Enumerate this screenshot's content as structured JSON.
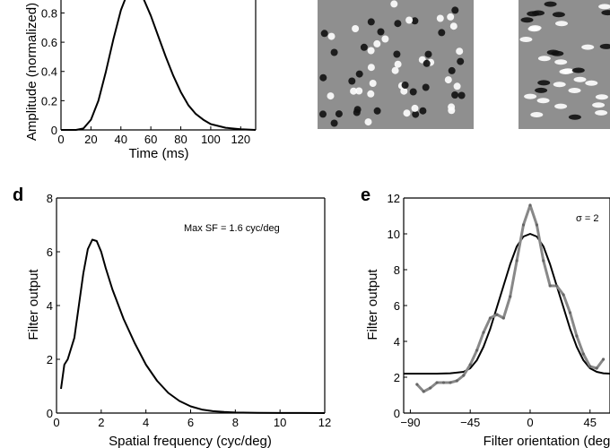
{
  "chart_data": [
    {
      "type": "line",
      "panel": "",
      "xlabel": "Time (ms)",
      "ylabel": "Amplitude (normalized)",
      "xlim": [
        0,
        130
      ],
      "ylim": [
        0,
        0.95
      ],
      "xticks": [
        0,
        20,
        40,
        60,
        80,
        100,
        120
      ],
      "yticks": [
        0,
        0.2,
        0.4,
        0.6,
        0.8
      ],
      "series": [
        {
          "x": [
            0,
            10,
            15,
            20,
            25,
            30,
            35,
            40,
            45,
            50,
            55,
            60,
            65,
            70,
            75,
            80,
            85,
            90,
            95,
            100,
            110,
            120,
            130
          ],
          "y": [
            0,
            0,
            0.01,
            0.07,
            0.2,
            0.4,
            0.62,
            0.82,
            0.95,
            0.97,
            0.9,
            0.78,
            0.64,
            0.5,
            0.37,
            0.26,
            0.17,
            0.11,
            0.07,
            0.04,
            0.015,
            0.005,
            0.0
          ],
          "color": "#000000"
        }
      ]
    },
    {
      "type": "line",
      "panel": "d",
      "xlabel": "Spatial frequency (cyc/deg)",
      "ylabel": "Filter output",
      "xlim": [
        0,
        12
      ],
      "ylim": [
        0,
        8
      ],
      "xticks": [
        0,
        2,
        4,
        6,
        8,
        10,
        12
      ],
      "yticks": [
        0,
        2,
        4,
        6,
        8
      ],
      "annotation": "Max SF = 1.6 cyc/deg",
      "series": [
        {
          "x": [
            0.2,
            0.35,
            0.5,
            0.8,
            1.0,
            1.2,
            1.4,
            1.6,
            1.8,
            2.0,
            2.2,
            2.5,
            3.0,
            3.5,
            4.0,
            4.5,
            5.0,
            5.5,
            6.0,
            6.5,
            7.0,
            7.5,
            8.0,
            9.0,
            10.0,
            11.0,
            12.0
          ],
          "y": [
            0.9,
            1.8,
            2.0,
            2.8,
            4.0,
            5.2,
            6.1,
            6.45,
            6.4,
            6.0,
            5.4,
            4.6,
            3.5,
            2.6,
            1.8,
            1.2,
            0.75,
            0.45,
            0.25,
            0.13,
            0.07,
            0.04,
            0.02,
            0.01,
            0.005,
            0.002,
            0.001
          ],
          "color": "#000000"
        }
      ]
    },
    {
      "type": "line",
      "panel": "e",
      "xlabel": "Filter orientation (deg)",
      "ylabel": "Filter output",
      "xlim": [
        -95,
        60
      ],
      "ylim": [
        0,
        12
      ],
      "xticks": [
        -90,
        -45,
        0,
        45
      ],
      "yticks": [
        0,
        2,
        4,
        6,
        8,
        10,
        12
      ],
      "annotation": "σ = 2",
      "series": [
        {
          "x": [
            -95,
            -80,
            -70,
            -60,
            -50,
            -45,
            -40,
            -35,
            -30,
            -25,
            -20,
            -15,
            -10,
            -5,
            0,
            5,
            10,
            15,
            20,
            25,
            30,
            35,
            40,
            45,
            50,
            55,
            60
          ],
          "y": [
            2.2,
            2.2,
            2.2,
            2.22,
            2.3,
            2.5,
            2.95,
            3.7,
            4.7,
            5.9,
            7.1,
            8.3,
            9.3,
            9.85,
            10.0,
            9.85,
            9.3,
            8.3,
            7.1,
            5.9,
            4.7,
            3.7,
            2.95,
            2.5,
            2.3,
            2.22,
            2.2
          ],
          "color": "#000000"
        },
        {
          "x": [
            -85,
            -80,
            -75,
            -70,
            -65,
            -60,
            -55,
            -50,
            -45,
            -40,
            -35,
            -30,
            -25,
            -20,
            -15,
            -10,
            -5,
            0,
            5,
            10,
            15,
            20,
            25,
            30,
            35,
            40,
            45,
            50,
            55
          ],
          "y": [
            1.6,
            1.2,
            1.4,
            1.7,
            1.7,
            1.7,
            1.8,
            2.1,
            2.7,
            3.5,
            4.5,
            5.3,
            5.5,
            5.3,
            6.5,
            8.5,
            10.5,
            11.6,
            10.5,
            8.5,
            7.1,
            7.1,
            6.6,
            5.6,
            4.3,
            3.3,
            2.6,
            2.5,
            3.0
          ],
          "color": "#888888"
        }
      ]
    }
  ]
}
